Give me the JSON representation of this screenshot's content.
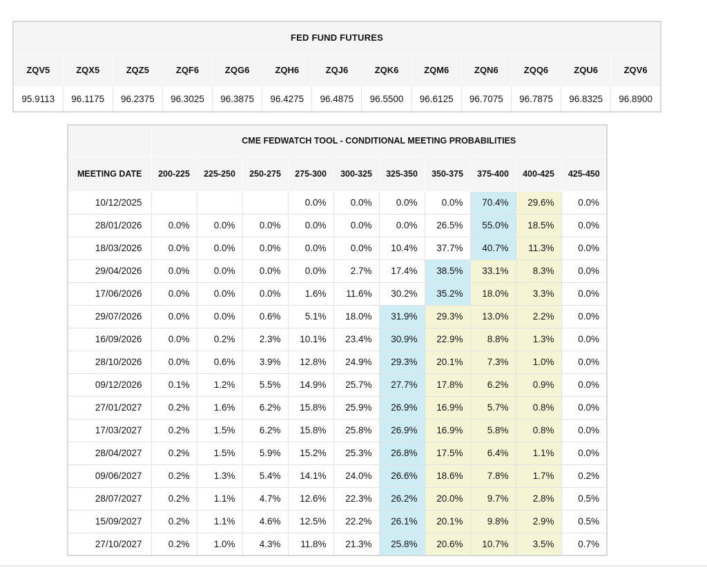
{
  "futures": {
    "title": "FED FUND FUTURES",
    "tickers": [
      "ZQV5",
      "ZQX5",
      "ZQZ5",
      "ZQF6",
      "ZQG6",
      "ZQH6",
      "ZQJ6",
      "ZQK6",
      "ZQM6",
      "ZQN6",
      "ZQQ6",
      "ZQU6",
      "ZQV6"
    ],
    "prices": [
      "95.9113",
      "96.1175",
      "96.2375",
      "96.3025",
      "96.3875",
      "96.4275",
      "96.4875",
      "96.5500",
      "96.6125",
      "96.7075",
      "96.7875",
      "96.8325",
      "96.8900"
    ]
  },
  "fedwatch": {
    "title": "CME FEDWATCH TOOL - CONDITIONAL MEETING PROBABILITIES",
    "date_header": "MEETING DATE",
    "range_headers": [
      "200-225",
      "225-250",
      "250-275",
      "275-300",
      "300-325",
      "325-350",
      "350-375",
      "375-400",
      "400-425",
      "425-450"
    ],
    "rows": [
      {
        "date": "10/12/2025",
        "cells": [
          "",
          "",
          "",
          "0.0%",
          "0.0%",
          "0.0%",
          "0.0%",
          "70.4%",
          "29.6%",
          "0.0%"
        ],
        "hl": [
          "",
          "",
          "",
          "",
          "",
          "",
          "",
          "b",
          "y",
          ""
        ]
      },
      {
        "date": "28/01/2026",
        "cells": [
          "0.0%",
          "0.0%",
          "0.0%",
          "0.0%",
          "0.0%",
          "0.0%",
          "26.5%",
          "55.0%",
          "18.5%",
          "0.0%"
        ],
        "hl": [
          "",
          "",
          "",
          "",
          "",
          "",
          "",
          "b",
          "y",
          ""
        ]
      },
      {
        "date": "18/03/2026",
        "cells": [
          "0.0%",
          "0.0%",
          "0.0%",
          "0.0%",
          "0.0%",
          "10.4%",
          "37.7%",
          "40.7%",
          "11.3%",
          "0.0%"
        ],
        "hl": [
          "",
          "",
          "",
          "",
          "",
          "",
          "",
          "b",
          "y",
          ""
        ]
      },
      {
        "date": "29/04/2026",
        "cells": [
          "0.0%",
          "0.0%",
          "0.0%",
          "0.0%",
          "2.7%",
          "17.4%",
          "38.5%",
          "33.1%",
          "8.3%",
          "0.0%"
        ],
        "hl": [
          "",
          "",
          "",
          "",
          "",
          "",
          "b",
          "y",
          "y",
          ""
        ]
      },
      {
        "date": "17/06/2026",
        "cells": [
          "0.0%",
          "0.0%",
          "0.0%",
          "1.6%",
          "11.6%",
          "30.2%",
          "35.2%",
          "18.0%",
          "3.3%",
          "0.0%"
        ],
        "hl": [
          "",
          "",
          "",
          "",
          "",
          "",
          "b",
          "y",
          "y",
          ""
        ]
      },
      {
        "date": "29/07/2026",
        "cells": [
          "0.0%",
          "0.0%",
          "0.6%",
          "5.1%",
          "18.0%",
          "31.9%",
          "29.3%",
          "13.0%",
          "2.2%",
          "0.0%"
        ],
        "hl": [
          "",
          "",
          "",
          "",
          "",
          "b",
          "y",
          "y",
          "y",
          ""
        ]
      },
      {
        "date": "16/09/2026",
        "cells": [
          "0.0%",
          "0.2%",
          "2.3%",
          "10.1%",
          "23.4%",
          "30.9%",
          "22.9%",
          "8.8%",
          "1.3%",
          "0.0%"
        ],
        "hl": [
          "",
          "",
          "",
          "",
          "",
          "b",
          "y",
          "y",
          "y",
          ""
        ]
      },
      {
        "date": "28/10/2026",
        "cells": [
          "0.0%",
          "0.6%",
          "3.9%",
          "12.8%",
          "24.9%",
          "29.3%",
          "20.1%",
          "7.3%",
          "1.0%",
          "0.0%"
        ],
        "hl": [
          "",
          "",
          "",
          "",
          "",
          "b",
          "y",
          "y",
          "y",
          ""
        ]
      },
      {
        "date": "09/12/2026",
        "cells": [
          "0.1%",
          "1.2%",
          "5.5%",
          "14.9%",
          "25.7%",
          "27.7%",
          "17.8%",
          "6.2%",
          "0.9%",
          "0.0%"
        ],
        "hl": [
          "",
          "",
          "",
          "",
          "",
          "b",
          "y",
          "y",
          "y",
          ""
        ]
      },
      {
        "date": "27/01/2027",
        "cells": [
          "0.2%",
          "1.6%",
          "6.2%",
          "15.8%",
          "25.9%",
          "26.9%",
          "16.9%",
          "5.7%",
          "0.8%",
          "0.0%"
        ],
        "hl": [
          "",
          "",
          "",
          "",
          "",
          "b",
          "y",
          "y",
          "y",
          ""
        ]
      },
      {
        "date": "17/03/2027",
        "cells": [
          "0.2%",
          "1.5%",
          "6.2%",
          "15.8%",
          "25.8%",
          "26.9%",
          "16.9%",
          "5.8%",
          "0.8%",
          "0.0%"
        ],
        "hl": [
          "",
          "",
          "",
          "",
          "",
          "b",
          "y",
          "y",
          "y",
          ""
        ]
      },
      {
        "date": "28/04/2027",
        "cells": [
          "0.2%",
          "1.5%",
          "5.9%",
          "15.2%",
          "25.3%",
          "26.8%",
          "17.5%",
          "6.4%",
          "1.1%",
          "0.0%"
        ],
        "hl": [
          "",
          "",
          "",
          "",
          "",
          "b",
          "y",
          "y",
          "y",
          ""
        ]
      },
      {
        "date": "09/06/2027",
        "cells": [
          "0.2%",
          "1.3%",
          "5.4%",
          "14.1%",
          "24.0%",
          "26.6%",
          "18.6%",
          "7.8%",
          "1.7%",
          "0.2%"
        ],
        "hl": [
          "",
          "",
          "",
          "",
          "",
          "b",
          "y",
          "y",
          "y",
          ""
        ]
      },
      {
        "date": "28/07/2027",
        "cells": [
          "0.2%",
          "1.1%",
          "4.7%",
          "12.6%",
          "22.3%",
          "26.2%",
          "20.0%",
          "9.7%",
          "2.8%",
          "0.5%"
        ],
        "hl": [
          "",
          "",
          "",
          "",
          "",
          "b",
          "y",
          "y",
          "y",
          ""
        ]
      },
      {
        "date": "15/09/2027",
        "cells": [
          "0.2%",
          "1.1%",
          "4.6%",
          "12.5%",
          "22.2%",
          "26.1%",
          "20.1%",
          "9.8%",
          "2.9%",
          "0.5%"
        ],
        "hl": [
          "",
          "",
          "",
          "",
          "",
          "b",
          "y",
          "y",
          "y",
          ""
        ]
      },
      {
        "date": "27/10/2027",
        "cells": [
          "0.2%",
          "1.0%",
          "4.3%",
          "11.8%",
          "21.3%",
          "25.8%",
          "20.6%",
          "10.7%",
          "3.5%",
          "0.7%"
        ],
        "hl": [
          "",
          "",
          "",
          "",
          "",
          "b",
          "y",
          "y",
          "y",
          ""
        ]
      }
    ]
  },
  "colors": {
    "highlight_blue": "#cdecf4",
    "highlight_yellow": "#f5f5d6",
    "header_bg": "#f5f5f5",
    "border": "#e2e2e2"
  }
}
